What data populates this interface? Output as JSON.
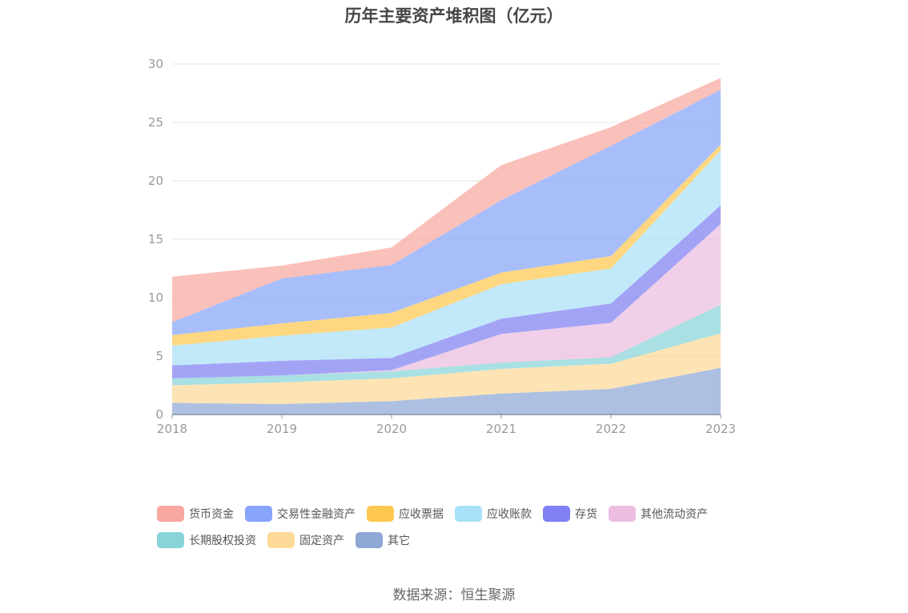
{
  "chart_data": {
    "type": "area",
    "stacked": true,
    "title": "历年主要资产堆积图（亿元）",
    "x": [
      "2018",
      "2019",
      "2020",
      "2021",
      "2022",
      "2023"
    ],
    "ylim": [
      0,
      30
    ],
    "yticks": [
      0,
      5,
      10,
      15,
      20,
      25,
      30
    ],
    "grid": true,
    "legend_position": "bottom",
    "series": [
      {
        "name": "其它",
        "color": "#8fa8d6",
        "values": [
          1.0,
          0.9,
          1.15,
          1.8,
          2.2,
          4.0
        ]
      },
      {
        "name": "固定资产",
        "color": "#fed997",
        "values": [
          1.5,
          1.85,
          1.95,
          2.1,
          2.15,
          2.95
        ]
      },
      {
        "name": "长期股权投资",
        "color": "#88d4d8",
        "values": [
          0.6,
          0.6,
          0.6,
          0.55,
          0.55,
          2.45
        ]
      },
      {
        "name": "其他流动资产",
        "color": "#ecbddf",
        "values": [
          0.0,
          0.0,
          0.1,
          2.45,
          2.95,
          6.9
        ]
      },
      {
        "name": "存货",
        "color": "#7f80f3",
        "values": [
          1.1,
          1.25,
          1.05,
          1.3,
          1.65,
          1.6
        ]
      },
      {
        "name": "应收账款",
        "color": "#a9e1f8",
        "values": [
          1.7,
          2.15,
          2.6,
          2.95,
          3.0,
          4.7
        ]
      },
      {
        "name": "应收票据",
        "color": "#fec74f",
        "values": [
          0.9,
          1.05,
          1.25,
          1.0,
          1.05,
          0.5
        ]
      },
      {
        "name": "交易性金融资产",
        "color": "#87a5fa",
        "values": [
          1.1,
          3.85,
          4.1,
          6.2,
          9.45,
          4.7
        ]
      },
      {
        "name": "货币资金",
        "color": "#f8a8a0",
        "values": [
          3.9,
          1.1,
          1.5,
          3.0,
          1.6,
          1.0
        ]
      }
    ]
  },
  "legend_order": [
    "货币资金",
    "交易性金融资产",
    "应收票据",
    "应收账款",
    "存货",
    "其他流动资产",
    "长期股权投资",
    "固定资产",
    "其它"
  ],
  "source": "数据来源：恒生聚源"
}
